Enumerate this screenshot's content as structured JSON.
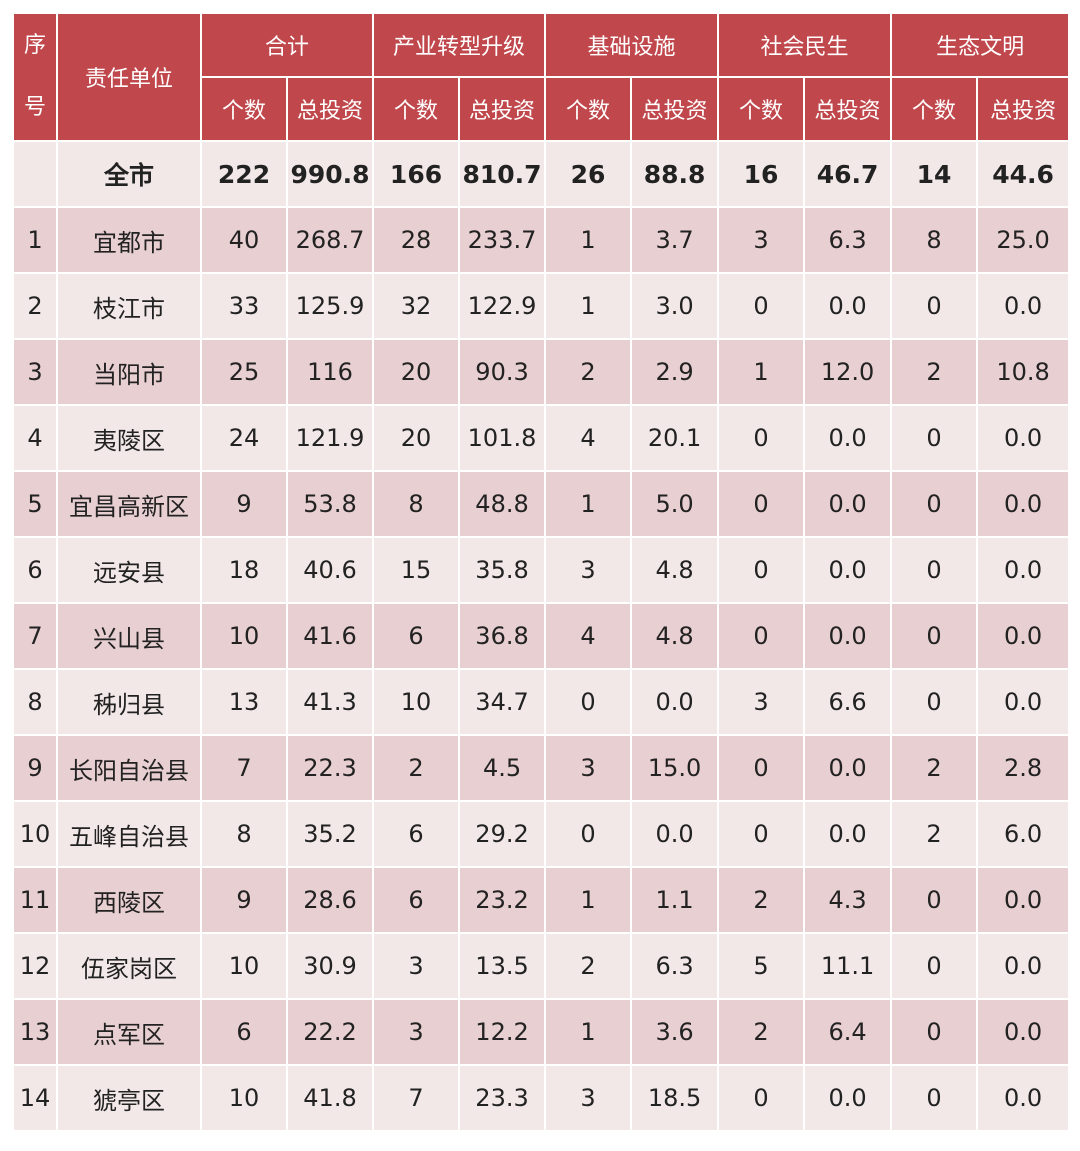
{
  "header": {
    "no_label": "序号",
    "no_char_1": "序",
    "no_char_2": "号",
    "unit_label": "责任单位",
    "groups": [
      "合计",
      "产业转型升级",
      "基础设施",
      "社会民生",
      "生态文明"
    ],
    "sub_count": "个数",
    "sub_invest": "总投资"
  },
  "total_row": {
    "no": "",
    "unit": "全市",
    "values": [
      "222",
      "990.8",
      "166",
      "810.7",
      "26",
      "88.8",
      "16",
      "46.7",
      "14",
      "44.6"
    ]
  },
  "rows": [
    {
      "no": "1",
      "unit": "宜都市",
      "values": [
        "40",
        "268.7",
        "28",
        "233.7",
        "1",
        "3.7",
        "3",
        "6.3",
        "8",
        "25.0"
      ]
    },
    {
      "no": "2",
      "unit": "枝江市",
      "values": [
        "33",
        "125.9",
        "32",
        "122.9",
        "1",
        "3.0",
        "0",
        "0.0",
        "0",
        "0.0"
      ]
    },
    {
      "no": "3",
      "unit": "当阳市",
      "values": [
        "25",
        "116",
        "20",
        "90.3",
        "2",
        "2.9",
        "1",
        "12.0",
        "2",
        "10.8"
      ]
    },
    {
      "no": "4",
      "unit": "夷陵区",
      "values": [
        "24",
        "121.9",
        "20",
        "101.8",
        "4",
        "20.1",
        "0",
        "0.0",
        "0",
        "0.0"
      ]
    },
    {
      "no": "5",
      "unit": "宜昌高新区",
      "values": [
        "9",
        "53.8",
        "8",
        "48.8",
        "1",
        "5.0",
        "0",
        "0.0",
        "0",
        "0.0"
      ]
    },
    {
      "no": "6",
      "unit": "远安县",
      "values": [
        "18",
        "40.6",
        "15",
        "35.8",
        "3",
        "4.8",
        "0",
        "0.0",
        "0",
        "0.0"
      ]
    },
    {
      "no": "7",
      "unit": "兴山县",
      "values": [
        "10",
        "41.6",
        "6",
        "36.8",
        "4",
        "4.8",
        "0",
        "0.0",
        "0",
        "0.0"
      ]
    },
    {
      "no": "8",
      "unit": "秭归县",
      "values": [
        "13",
        "41.3",
        "10",
        "34.7",
        "0",
        "0.0",
        "3",
        "6.6",
        "0",
        "0.0"
      ]
    },
    {
      "no": "9",
      "unit": "长阳自治县",
      "values": [
        "7",
        "22.3",
        "2",
        "4.5",
        "3",
        "15.0",
        "0",
        "0.0",
        "2",
        "2.8"
      ]
    },
    {
      "no": "10",
      "unit": "五峰自治县",
      "values": [
        "8",
        "35.2",
        "6",
        "29.2",
        "0",
        "0.0",
        "0",
        "0.0",
        "2",
        "6.0"
      ]
    },
    {
      "no": "11",
      "unit": "西陵区",
      "values": [
        "9",
        "28.6",
        "6",
        "23.2",
        "1",
        "1.1",
        "2",
        "4.3",
        "0",
        "0.0"
      ]
    },
    {
      "no": "12",
      "unit": "伍家岗区",
      "values": [
        "10",
        "30.9",
        "3",
        "13.5",
        "2",
        "6.3",
        "5",
        "11.1",
        "0",
        "0.0"
      ]
    },
    {
      "no": "13",
      "unit": "点军区",
      "values": [
        "6",
        "22.2",
        "3",
        "12.2",
        "1",
        "3.6",
        "2",
        "6.4",
        "0",
        "0.0"
      ]
    },
    {
      "no": "14",
      "unit": "猇亭区",
      "values": [
        "10",
        "41.8",
        "7",
        "23.3",
        "3",
        "18.5",
        "0",
        "0.0",
        "0",
        "0.0"
      ]
    }
  ],
  "colors": {
    "header_bg": "#c0484c",
    "header_text": "#ffffff",
    "row_dark": "#e8cfd1",
    "row_light": "#f3e8e8"
  }
}
